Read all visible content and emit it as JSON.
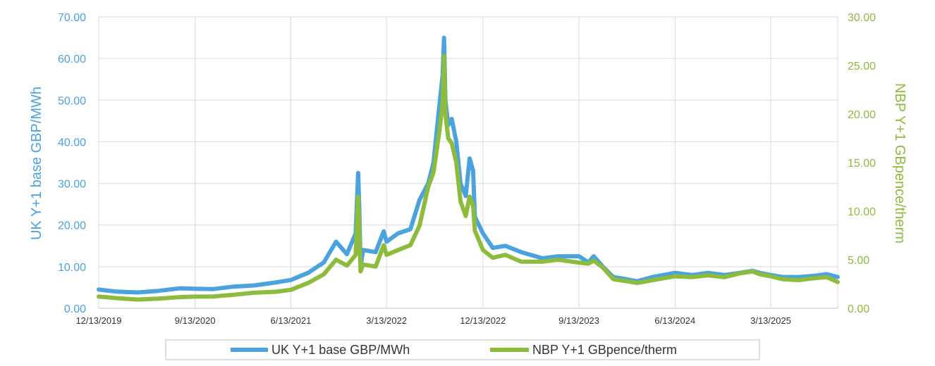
{
  "chart_data": {
    "type": "line",
    "title": "",
    "x_ticks": [
      "12/13/2019",
      "9/13/2020",
      "6/13/2021",
      "3/13/2022",
      "12/13/2022",
      "9/13/2023",
      "6/13/2024",
      "3/13/2025"
    ],
    "xlim": [
      "2019-12-13",
      "2025-09-20"
    ],
    "y_left": {
      "label": "UK Y+1 base GBP/MWh",
      "lim": [
        0,
        70
      ],
      "ticks": [
        "0.00",
        "10.00",
        "20.00",
        "30.00",
        "40.00",
        "50.00",
        "60.00",
        "70.00"
      ]
    },
    "y_right": {
      "label": "NBP Y+1 GBpence/therm",
      "lim": [
        0,
        30
      ],
      "ticks": [
        "0.00",
        "5.00",
        "10.00",
        "15.00",
        "20.00",
        "25.00",
        "30.00"
      ]
    },
    "grid": "vertical and horizontal",
    "legend": "bottom",
    "colors": {
      "uk": "#4aa3df",
      "nbp": "#8dbb3c",
      "grid": "#d9d9d9"
    },
    "series": [
      {
        "name": "UK Y+1 base GBP/MWh",
        "axis": "left",
        "x": [
          "2019-12-13",
          "2020-02-01",
          "2020-04-01",
          "2020-06-01",
          "2020-08-01",
          "2020-09-13",
          "2020-11-01",
          "2021-01-01",
          "2021-03-01",
          "2021-05-01",
          "2021-06-13",
          "2021-08-01",
          "2021-09-15",
          "2021-10-20",
          "2021-11-20",
          "2021-12-15",
          "2021-12-22",
          "2021-12-25",
          "2021-12-29",
          "2022-01-05",
          "2022-02-10",
          "2022-03-05",
          "2022-03-13",
          "2022-04-15",
          "2022-05-20",
          "2022-06-15",
          "2022-07-10",
          "2022-07-25",
          "2022-08-10",
          "2022-08-20",
          "2022-08-24",
          "2022-08-28",
          "2022-09-05",
          "2022-09-15",
          "2022-09-28",
          "2022-10-10",
          "2022-10-25",
          "2022-11-05",
          "2022-11-15",
          "2022-11-20",
          "2022-12-13",
          "2023-01-10",
          "2023-02-15",
          "2023-04-01",
          "2023-06-01",
          "2023-07-15",
          "2023-09-13",
          "2023-10-10",
          "2023-10-25",
          "2023-11-20",
          "2023-12-20",
          "2024-01-25",
          "2024-02-25",
          "2024-04-10",
          "2024-06-13",
          "2024-08-01",
          "2024-09-15",
          "2024-11-01",
          "2024-12-15",
          "2025-01-20",
          "2025-02-10",
          "2025-03-13",
          "2025-04-15",
          "2025-06-01",
          "2025-07-15",
          "2025-08-20",
          "2025-09-20"
        ],
        "values": [
          4.5,
          4.0,
          3.8,
          4.2,
          4.8,
          4.7,
          4.6,
          5.2,
          5.5,
          6.2,
          6.8,
          8.5,
          11.0,
          16.0,
          13.0,
          18.0,
          32.5,
          25.0,
          10.0,
          14.0,
          13.5,
          18.5,
          16.0,
          18.0,
          19.0,
          26.0,
          30.0,
          35.0,
          48.0,
          56.0,
          65.0,
          50.0,
          44.0,
          45.5,
          40.0,
          30.0,
          27.0,
          36.0,
          33.0,
          22.0,
          18.0,
          14.5,
          15.0,
          13.5,
          12.0,
          12.5,
          12.5,
          11.0,
          12.5,
          10.0,
          7.5,
          7.0,
          6.5,
          7.5,
          8.5,
          8.0,
          8.5,
          8.0,
          8.5,
          9.0,
          8.5,
          8.0,
          7.5,
          7.5,
          7.8,
          8.2,
          7.5
        ]
      },
      {
        "name": "NBP Y+1 GBpence/therm",
        "axis": "right",
        "x": [
          "2019-12-13",
          "2020-02-01",
          "2020-04-01",
          "2020-06-01",
          "2020-08-01",
          "2020-09-13",
          "2020-11-01",
          "2021-01-01",
          "2021-03-01",
          "2021-05-01",
          "2021-06-13",
          "2021-08-01",
          "2021-09-15",
          "2021-10-20",
          "2021-11-20",
          "2021-12-15",
          "2021-12-22",
          "2021-12-25",
          "2021-12-29",
          "2022-01-05",
          "2022-02-10",
          "2022-03-05",
          "2022-03-13",
          "2022-04-15",
          "2022-05-20",
          "2022-06-15",
          "2022-07-10",
          "2022-07-25",
          "2022-08-10",
          "2022-08-20",
          "2022-08-24",
          "2022-08-28",
          "2022-09-05",
          "2022-09-15",
          "2022-09-28",
          "2022-10-10",
          "2022-10-25",
          "2022-11-05",
          "2022-11-15",
          "2022-11-20",
          "2022-12-13",
          "2023-01-10",
          "2023-02-15",
          "2023-04-01",
          "2023-06-01",
          "2023-07-15",
          "2023-09-13",
          "2023-10-10",
          "2023-10-25",
          "2023-11-20",
          "2023-12-20",
          "2024-01-25",
          "2024-02-25",
          "2024-04-10",
          "2024-06-13",
          "2024-08-01",
          "2024-09-15",
          "2024-11-01",
          "2024-12-15",
          "2025-01-20",
          "2025-02-10",
          "2025-03-13",
          "2025-04-15",
          "2025-06-01",
          "2025-07-15",
          "2025-08-20",
          "2025-09-20"
        ],
        "values": [
          1.2,
          1.05,
          0.9,
          1.0,
          1.15,
          1.2,
          1.2,
          1.4,
          1.6,
          1.7,
          1.9,
          2.6,
          3.5,
          5.0,
          4.4,
          5.5,
          11.5,
          8.0,
          3.8,
          4.5,
          4.3,
          6.5,
          5.5,
          6.0,
          6.5,
          8.5,
          12.5,
          14.0,
          18.0,
          21.0,
          26.0,
          20.0,
          17.5,
          17.0,
          15.0,
          11.0,
          9.5,
          11.5,
          10.5,
          8.0,
          6.0,
          5.2,
          5.5,
          4.8,
          4.8,
          5.0,
          4.7,
          4.6,
          4.9,
          4.2,
          3.0,
          2.8,
          2.6,
          2.9,
          3.3,
          3.2,
          3.4,
          3.2,
          3.6,
          3.8,
          3.5,
          3.3,
          3.0,
          2.9,
          3.1,
          3.2,
          2.7
        ]
      }
    ]
  }
}
